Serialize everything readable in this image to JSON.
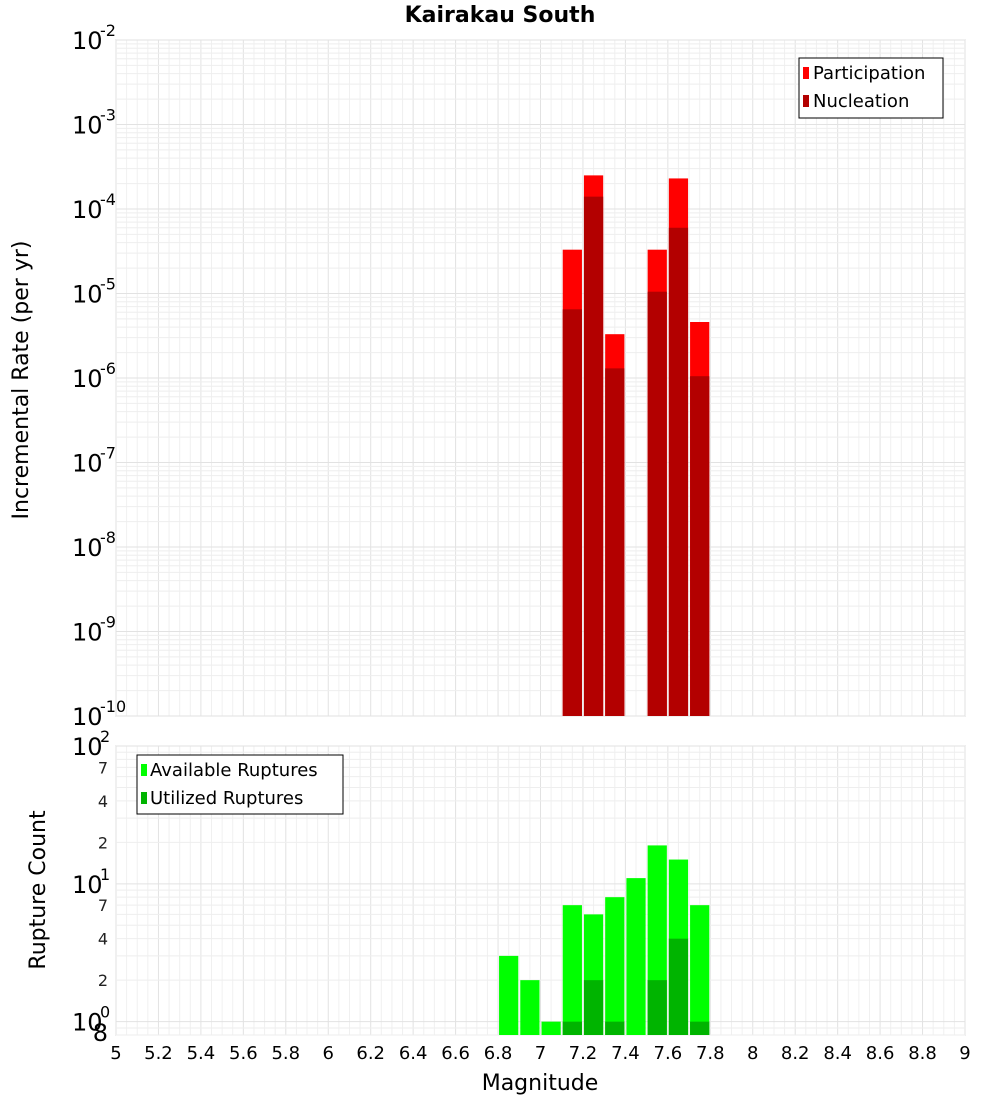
{
  "title": "Kairakau South",
  "xlabel": "Magnitude",
  "chart_data": [
    {
      "type": "bar",
      "name": "rate-panel",
      "title": "Kairakau South",
      "xlabel": "Magnitude",
      "ylabel": "Incremental Rate (per yr)",
      "yscale": "log",
      "xlim": [
        5,
        9
      ],
      "ylim": [
        1e-10,
        0.01
      ],
      "bar_width": 0.1,
      "grid": true,
      "legend_position": "top-right",
      "xticks": [
        "5",
        "5.2",
        "5.4",
        "5.6",
        "5.8",
        "6",
        "6.2",
        "6.4",
        "6.6",
        "6.8",
        "7",
        "7.2",
        "7.4",
        "7.6",
        "7.8",
        "8",
        "8.2",
        "8.4",
        "8.6",
        "8.8",
        "9"
      ],
      "ytick_base": "10",
      "ytick_exponents": [
        "-10",
        "-9",
        "-8",
        "-7",
        "-6",
        "-5",
        "-4",
        "-3",
        "-2"
      ],
      "series": [
        {
          "name": "Participation",
          "color": "#ff0000",
          "x": [
            7.15,
            7.25,
            7.35,
            7.55,
            7.65,
            7.75
          ],
          "values": [
            3.3e-05,
            0.00025,
            3.3e-06,
            3.3e-05,
            0.00023,
            4.6e-06
          ]
        },
        {
          "name": "Nucleation",
          "color": "#b30000",
          "x": [
            7.15,
            7.25,
            7.35,
            7.55,
            7.65,
            7.75
          ],
          "values": [
            6.5e-06,
            0.00014,
            1.3e-06,
            1.05e-05,
            6e-05,
            1.05e-06
          ]
        }
      ]
    },
    {
      "type": "bar",
      "name": "count-panel",
      "ylabel": "Rupture Count",
      "yscale": "log",
      "xlim": [
        5,
        9
      ],
      "ylim": [
        0.8,
        100
      ],
      "bar_width": 0.1,
      "grid": true,
      "legend_position": "top-left",
      "ytick_base": "10",
      "ytick_exponents": [
        "0",
        "1",
        "2"
      ],
      "minor_labels": [
        "8",
        "2",
        "4",
        "7",
        "2",
        "4",
        "7"
      ],
      "series": [
        {
          "name": "Available Ruptures",
          "color": "#00ff00",
          "x": [
            6.85,
            6.95,
            7.05,
            7.15,
            7.25,
            7.35,
            7.45,
            7.55,
            7.65,
            7.75
          ],
          "values": [
            3,
            2,
            1,
            7,
            6,
            8,
            11,
            19,
            15,
            7
          ]
        },
        {
          "name": "Utilized Ruptures",
          "color": "#00b400",
          "x": [
            7.15,
            7.25,
            7.35,
            7.55,
            7.65,
            7.75
          ],
          "values": [
            1,
            2,
            1,
            2,
            4,
            1
          ]
        }
      ]
    }
  ]
}
